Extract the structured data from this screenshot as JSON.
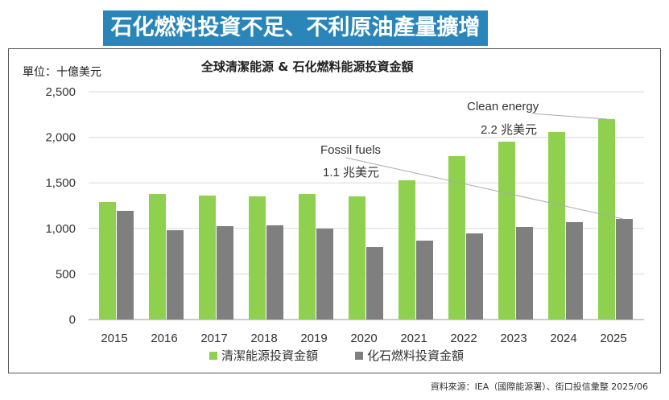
{
  "header": {
    "title": "石化燃料投資不足、不利原油產量擴增"
  },
  "source": "資料來源：IEA（國際能源署）、街口投信彙整 2025/06",
  "chart_data": {
    "type": "bar",
    "title": "全球清潔能源 & 石化燃料能源投資金額",
    "ylabel": "單位：十億美元",
    "xlabel": "",
    "ylim": [
      0,
      2500
    ],
    "yticks": [
      0,
      500,
      1000,
      1500,
      2000,
      2500
    ],
    "ytick_labels": [
      "0",
      "500",
      "1,000",
      "1,500",
      "2,000",
      "2,500"
    ],
    "grid": true,
    "legend_position": "bottom",
    "categories": [
      "2015",
      "2016",
      "2017",
      "2018",
      "2019",
      "2020",
      "2021",
      "2022",
      "2023",
      "2024",
      "2025"
    ],
    "series": [
      {
        "name": "清潔能源投資金額",
        "color": "#8fd14f",
        "values": [
          1290,
          1378,
          1360,
          1352,
          1378,
          1352,
          1528,
          1793,
          1952,
          2058,
          2200
        ]
      },
      {
        "name": "化石燃料投資金額",
        "color": "#7f7f7f",
        "values": [
          1193,
          980,
          1025,
          1034,
          998,
          795,
          866,
          945,
          1016,
          1069,
          1104
        ]
      }
    ],
    "annotations": [
      {
        "label": "Clean energy",
        "value_label": "2.2 兆美元",
        "category": "2025",
        "series": 0
      },
      {
        "label": "Fossil fuels",
        "value_label": "1.1 兆美元",
        "category": "2025",
        "series": 1
      }
    ]
  }
}
